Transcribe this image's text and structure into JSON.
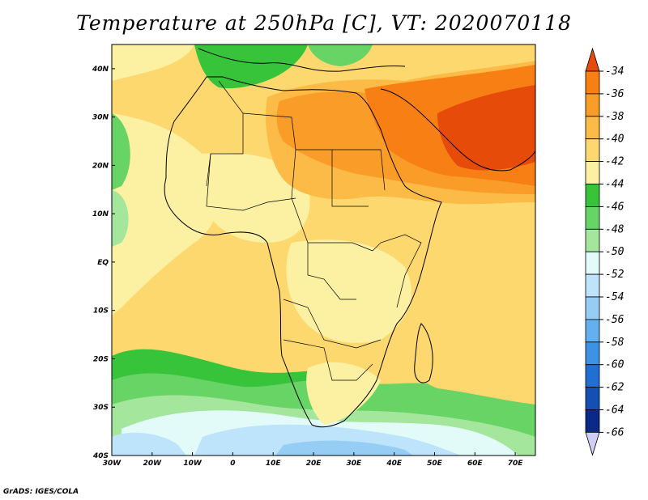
{
  "title": "Temperature at 250hPa [C], VT: 2020070118",
  "footer": "GrADS: IGES/COLA",
  "map": {
    "type": "filled-contour-map",
    "lon_range": [
      -30,
      75
    ],
    "lat_range": [
      -40,
      45
    ],
    "x_ticks": [
      {
        "lon": -30,
        "label": "30W"
      },
      {
        "lon": -20,
        "label": "20W"
      },
      {
        "lon": -10,
        "label": "10W"
      },
      {
        "lon": 0,
        "label": "0"
      },
      {
        "lon": 10,
        "label": "10E"
      },
      {
        "lon": 20,
        "label": "20E"
      },
      {
        "lon": 30,
        "label": "30E"
      },
      {
        "lon": 40,
        "label": "40E"
      },
      {
        "lon": 50,
        "label": "50E"
      },
      {
        "lon": 60,
        "label": "60E"
      },
      {
        "lon": 70,
        "label": "70E"
      }
    ],
    "y_ticks": [
      {
        "lat": 40,
        "label": "40N"
      },
      {
        "lat": 30,
        "label": "30N"
      },
      {
        "lat": 20,
        "label": "20N"
      },
      {
        "lat": 10,
        "label": "10N"
      },
      {
        "lat": 0,
        "label": "EQ"
      },
      {
        "lat": -10,
        "label": "10S"
      },
      {
        "lat": -20,
        "label": "20S"
      },
      {
        "lat": -30,
        "label": "30S"
      },
      {
        "lat": -40,
        "label": "40S"
      }
    ]
  },
  "colorbar": {
    "labels": [
      "-34",
      "-36",
      "-38",
      "-40",
      "-42",
      "-44",
      "-46",
      "-48",
      "-50",
      "-52",
      "-54",
      "-56",
      "-58",
      "-60",
      "-62",
      "-64",
      "-66"
    ],
    "colors": [
      "#e64b0a",
      "#f77f14",
      "#fa9d28",
      "#fbbb46",
      "#fcd86e",
      "#fcf0a2",
      "#38c43a",
      "#68d466",
      "#a3e69c",
      "#e2fbf8",
      "#bde4fa",
      "#96cdf5",
      "#64b0ee",
      "#3c92e4",
      "#2070d4",
      "#1450b4",
      "#0c2888",
      "#cfcff5"
    ]
  },
  "fields": {
    "background": "#fcd86e",
    "ocean_south_cool": "#fcf0a2"
  }
}
